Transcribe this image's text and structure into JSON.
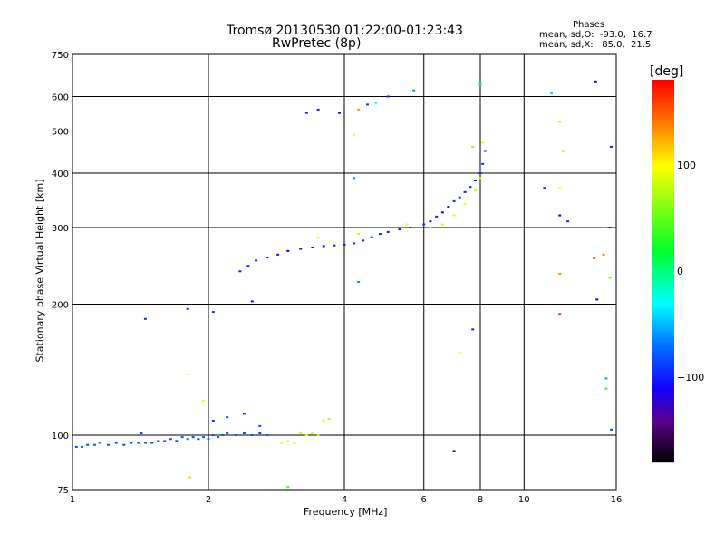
{
  "chart_data": {
    "type": "scatter",
    "title": "Tromsø 20130530 01:22:00-01:23:43",
    "subtitle": "RwPretec (8p)",
    "stats": {
      "title": "Phases",
      "o_line": "mean, sd,O:  -93.0,  16.7",
      "x_line": "mean, sd,X:   85.0,  21.5"
    },
    "xlabel": "Frequency [MHz]",
    "ylabel": "Stationary phase Virtual Height [km]",
    "xscale": "log",
    "yscale": "log",
    "xlim": [
      1,
      16
    ],
    "ylim": [
      75,
      750
    ],
    "xticks": [
      1,
      2,
      4,
      6,
      8,
      10,
      16
    ],
    "yticks": [
      75,
      100,
      200,
      300,
      400,
      500,
      600,
      750
    ],
    "grid": true,
    "colorbar": {
      "label": "[deg]",
      "range": [
        -180,
        180
      ],
      "ticks": [
        100,
        0,
        -100
      ]
    },
    "points": [
      [
        1.02,
        94,
        -80
      ],
      [
        1.05,
        94,
        -75
      ],
      [
        1.08,
        95,
        -85
      ],
      [
        1.12,
        95,
        -80
      ],
      [
        1.15,
        96,
        -70
      ],
      [
        1.2,
        95,
        -80
      ],
      [
        1.25,
        96,
        -78
      ],
      [
        1.3,
        95,
        -85
      ],
      [
        1.35,
        96,
        -80
      ],
      [
        1.4,
        96,
        -75
      ],
      [
        1.42,
        101,
        -90
      ],
      [
        1.45,
        96,
        -80
      ],
      [
        1.5,
        96,
        -85
      ],
      [
        1.55,
        97,
        -80
      ],
      [
        1.6,
        97,
        -78
      ],
      [
        1.65,
        98,
        -80
      ],
      [
        1.7,
        97,
        -85
      ],
      [
        1.75,
        99,
        -80
      ],
      [
        1.8,
        98,
        -75
      ],
      [
        1.85,
        99,
        -80
      ],
      [
        1.9,
        98,
        -85
      ],
      [
        1.95,
        99,
        -80
      ],
      [
        2.0,
        98,
        -70
      ],
      [
        2.05,
        100,
        -80
      ],
      [
        2.1,
        99,
        -85
      ],
      [
        2.15,
        100,
        -75
      ],
      [
        2.2,
        101,
        -80
      ],
      [
        2.3,
        100,
        -78
      ],
      [
        2.4,
        101,
        -82
      ],
      [
        2.5,
        100,
        -80
      ],
      [
        2.6,
        101,
        -85
      ],
      [
        2.7,
        100,
        -75
      ],
      [
        2.05,
        108,
        -90
      ],
      [
        2.2,
        110,
        -80
      ],
      [
        2.4,
        112,
        -85
      ],
      [
        2.6,
        105,
        -80
      ],
      [
        1.8,
        138,
        110
      ],
      [
        1.95,
        120,
        100
      ],
      [
        1.82,
        80,
        110
      ],
      [
        2.9,
        96,
        90
      ],
      [
        3.0,
        97,
        95
      ],
      [
        3.1,
        96,
        85
      ],
      [
        3.2,
        101,
        90
      ],
      [
        3.3,
        100,
        88
      ],
      [
        3.4,
        101,
        92
      ],
      [
        3.5,
        100,
        85
      ],
      [
        3.6,
        108,
        95
      ],
      [
        3.7,
        109,
        80
      ],
      [
        3.0,
        76,
        40
      ],
      [
        1.45,
        185,
        -95
      ],
      [
        1.8,
        195,
        -100
      ],
      [
        2.05,
        192,
        -90
      ],
      [
        2.5,
        203,
        -110
      ],
      [
        2.35,
        238,
        -95
      ],
      [
        2.45,
        245,
        -100
      ],
      [
        2.55,
        252,
        -90
      ],
      [
        2.7,
        256,
        -95
      ],
      [
        2.85,
        260,
        -100
      ],
      [
        3.0,
        265,
        -110
      ],
      [
        3.2,
        268,
        -115
      ],
      [
        3.4,
        270,
        -120
      ],
      [
        3.6,
        272,
        -110
      ],
      [
        3.8,
        273,
        -100
      ],
      [
        4.0,
        274,
        -105
      ],
      [
        4.2,
        276,
        -95
      ],
      [
        4.4,
        280,
        -100
      ],
      [
        4.6,
        285,
        -90
      ],
      [
        4.8,
        290,
        -95
      ],
      [
        5.0,
        293,
        -100
      ],
      [
        5.3,
        297,
        -105
      ],
      [
        5.6,
        300,
        -95
      ],
      [
        6.0,
        305,
        -90
      ],
      [
        6.2,
        310,
        -100
      ],
      [
        6.4,
        318,
        -95
      ],
      [
        6.6,
        325,
        -105
      ],
      [
        6.8,
        335,
        -100
      ],
      [
        7.0,
        345,
        -95
      ],
      [
        7.2,
        352,
        -90
      ],
      [
        7.4,
        362,
        -100
      ],
      [
        7.6,
        372,
        -95
      ],
      [
        7.8,
        385,
        -110
      ],
      [
        8.0,
        400,
        -100
      ],
      [
        8.1,
        420,
        -90
      ],
      [
        8.2,
        450,
        -95
      ],
      [
        3.5,
        285,
        90
      ],
      [
        4.3,
        290,
        85
      ],
      [
        5.5,
        305,
        95
      ],
      [
        6.2,
        300,
        90
      ],
      [
        6.6,
        305,
        85
      ],
      [
        7.0,
        320,
        90
      ],
      [
        7.4,
        340,
        95
      ],
      [
        7.8,
        365,
        90
      ],
      [
        8.0,
        390,
        85
      ],
      [
        8.1,
        470,
        90
      ],
      [
        7.7,
        460,
        70
      ],
      [
        3.5,
        560,
        -100
      ],
      [
        3.3,
        550,
        -95
      ],
      [
        3.9,
        550,
        -110
      ],
      [
        4.3,
        560,
        130
      ],
      [
        4.5,
        575,
        -90
      ],
      [
        4.7,
        580,
        -30
      ],
      [
        5.0,
        600,
        -100
      ],
      [
        5.7,
        620,
        -60
      ],
      [
        4.2,
        490,
        100
      ],
      [
        4.2,
        390,
        -60
      ],
      [
        4.3,
        225,
        -60
      ],
      [
        7.7,
        175,
        -100
      ],
      [
        7.2,
        155,
        100
      ],
      [
        7.0,
        92,
        -150
      ],
      [
        8.0,
        640,
        -40
      ],
      [
        11.1,
        370,
        -100
      ],
      [
        11.5,
        610,
        -40
      ],
      [
        12.0,
        525,
        110
      ],
      [
        12.0,
        370,
        100
      ],
      [
        12.0,
        320,
        -110
      ],
      [
        12.0,
        235,
        130
      ],
      [
        12.0,
        190,
        160
      ],
      [
        12.2,
        450,
        50
      ],
      [
        12.5,
        310,
        -100
      ],
      [
        14.3,
        255,
        150
      ],
      [
        14.4,
        650,
        -150
      ],
      [
        14.5,
        205,
        -110
      ],
      [
        15.0,
        300,
        130
      ],
      [
        15.0,
        260,
        140
      ],
      [
        15.2,
        135,
        -60
      ],
      [
        15.2,
        128,
        30
      ],
      [
        15.5,
        300,
        -120
      ],
      [
        15.6,
        103,
        -80
      ],
      [
        15.6,
        460,
        -100
      ],
      [
        15.5,
        230,
        50
      ]
    ]
  }
}
